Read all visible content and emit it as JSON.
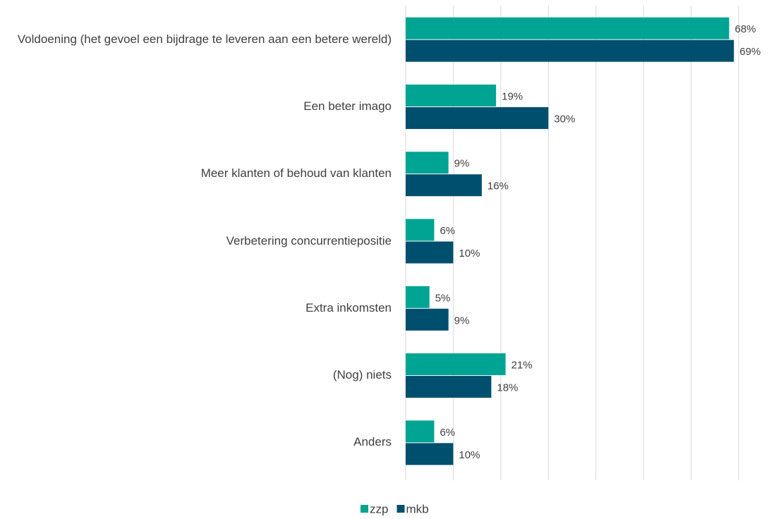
{
  "chart_data": {
    "type": "bar",
    "orientation": "horizontal",
    "categories": [
      "Voldoening (het gevoel een bijdrage te leveren aan een betere wereld)",
      "Een beter imago",
      "Meer klanten of behoud van klanten",
      "Verbetering concurrentiepositie",
      "Extra inkomsten",
      "(Nog) niets",
      "Anders"
    ],
    "series": [
      {
        "name": "zzp",
        "color": "#00a492",
        "values": [
          68,
          19,
          9,
          6,
          5,
          21,
          6
        ],
        "value_labels": [
          "68%",
          "19%",
          "9%",
          "6%",
          "5%",
          "21%",
          "6%"
        ]
      },
      {
        "name": "mkb",
        "color": "#004f6e",
        "values": [
          69,
          30,
          16,
          10,
          9,
          18,
          10
        ],
        "value_labels": [
          "69%",
          "30%",
          "16%",
          "10%",
          "9%",
          "18%",
          "10%"
        ]
      }
    ],
    "xlim": [
      0,
      70
    ],
    "xticks": [
      0,
      10,
      20,
      30,
      40,
      50,
      60,
      70
    ],
    "grid": true,
    "legend": "bottom"
  }
}
